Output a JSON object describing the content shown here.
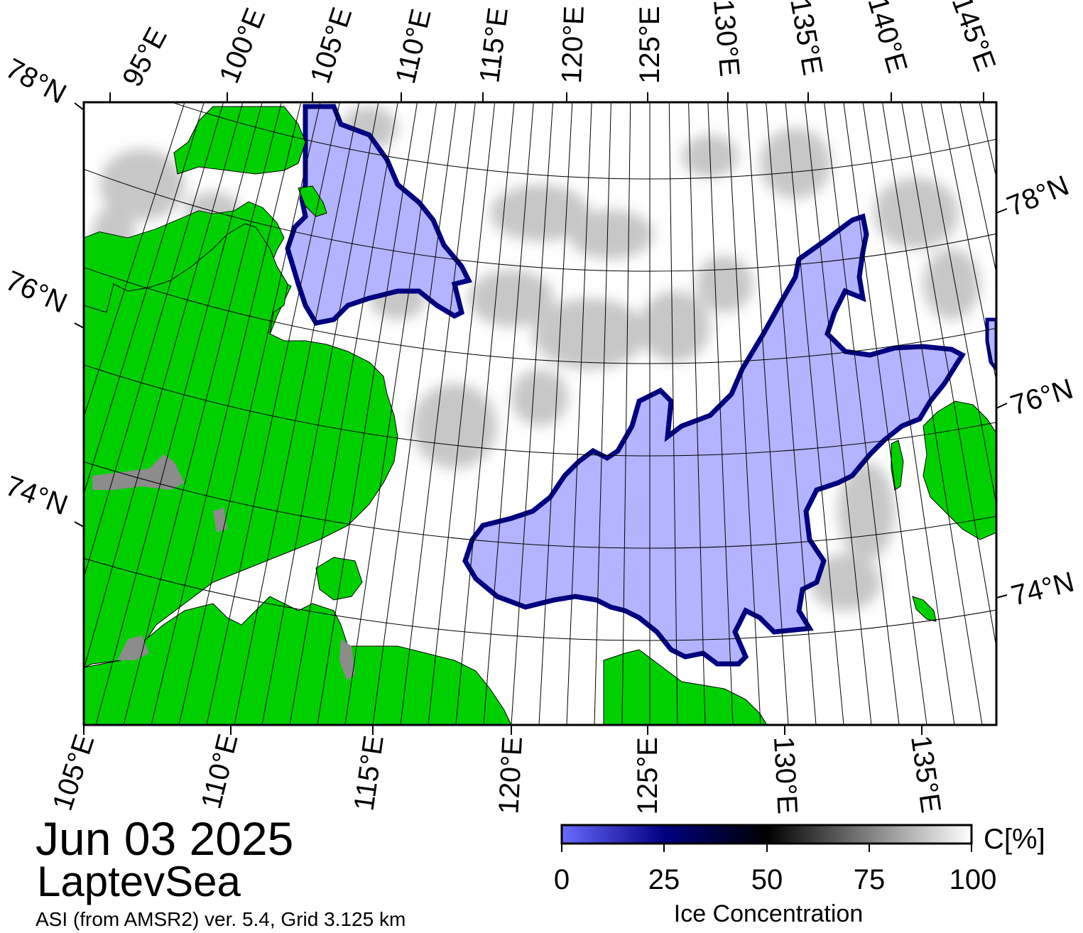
{
  "map": {
    "date": "Jun 03 2025",
    "region": "LaptevSea",
    "source_note": "ASI (from AMSR2) ver. 5.4,  Grid 3.125 km",
    "colors": {
      "land": "#00d000",
      "land_ice": "#8c8c8c",
      "open_water": "#b3b3ff",
      "ice_full": "#ffffff",
      "frame": "#000000"
    },
    "top_lon_labels": [
      "95°E",
      "100°E",
      "105°E",
      "110°E",
      "115°E",
      "120°E",
      "125°E",
      "130°E",
      "135°E",
      "140°E",
      "145°E"
    ],
    "bottom_lon_labels": [
      "105°E",
      "110°E",
      "115°E",
      "120°E",
      "125°E",
      "130°E",
      "135°E"
    ],
    "left_lat_labels": [
      "78°N",
      "76°N",
      "74°N"
    ],
    "right_lat_labels": [
      "78°N",
      "76°N",
      "74°N"
    ]
  },
  "colorbar": {
    "unit_label": "C[%]",
    "title": "Ice Concentration",
    "ticks": [
      "0",
      "25",
      "50",
      "75",
      "100"
    ],
    "stops": [
      "#6a6aff",
      "#000080",
      "#000000",
      "#808080",
      "#ffffff"
    ]
  }
}
